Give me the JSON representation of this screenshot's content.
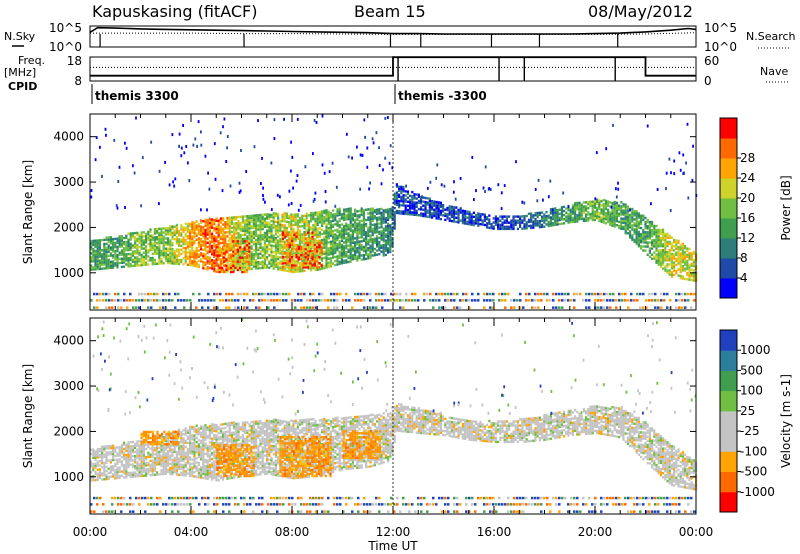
{
  "header": {
    "station": "Kapuskasing (fitACF)",
    "beam": "Beam 15",
    "date": "08/May/2012"
  },
  "side_labels": {
    "nsky_label": "N.Sky",
    "freq_label": "Freq.",
    "freq_unit": "[MHz]",
    "cpid_label": "CPID",
    "nsearch_label": "N.Search",
    "nave_label": "Nave"
  },
  "cpid_segments": [
    {
      "label": "themis 3300",
      "start_h": 0,
      "end_h": 12
    },
    {
      "label": "themis -3300",
      "start_h": 12,
      "end_h": 24
    }
  ],
  "colors": {
    "power": [
      "#0000ff",
      "#1e4aa8",
      "#2d7d7d",
      "#3f9f4f",
      "#6fc040",
      "#cfd22a",
      "#ffa400",
      "#ff6a00",
      "#ff0000"
    ],
    "velocity": [
      "#2040c0",
      "#2d7d9d",
      "#3f9f4f",
      "#6fc040",
      "#c4c4c4",
      "#c4c4c4",
      "#ffa400",
      "#ff6a00",
      "#ff0000"
    ]
  },
  "chart_data": [
    {
      "type": "line",
      "panel": "nsky-nsearch",
      "yaxis_left": {
        "ticks": [
          "10^5",
          "10^0"
        ]
      },
      "yaxis_right": {
        "ticks": [
          "10^5",
          "10^0"
        ]
      },
      "xlim": [
        0,
        24
      ],
      "series": [
        {
          "name": "N.Sky",
          "style": "solid",
          "x": [
            0,
            0.3,
            1,
            2,
            3,
            4,
            5,
            6,
            7,
            8,
            9,
            10,
            11,
            12,
            13,
            14,
            15,
            16,
            17,
            18,
            19,
            20,
            21,
            22,
            23,
            23.7,
            24
          ],
          "y": [
            3.5,
            4.6,
            4.5,
            4.3,
            4.2,
            4.1,
            4.0,
            3.9,
            3.8,
            3.7,
            3.6,
            3.5,
            3.4,
            3.2,
            3.2,
            3.1,
            3.1,
            3.1,
            3.1,
            3.1,
            3.1,
            3.2,
            3.3,
            3.6,
            4.0,
            4.4,
            4.2
          ]
        },
        {
          "name": "N.Search",
          "style": "dotted",
          "x": [
            0,
            2,
            4,
            6,
            8,
            10,
            12,
            14,
            16,
            18,
            20,
            22,
            24
          ],
          "y": [
            3.3,
            3.3,
            3.3,
            3.2,
            3.2,
            3.1,
            3.0,
            3.0,
            3.0,
            3.0,
            3.0,
            3.1,
            3.4
          ]
        }
      ]
    },
    {
      "type": "line",
      "panel": "freq-nave",
      "yaxis_left": {
        "ticks": [
          "18",
          "8"
        ],
        "range": [
          8,
          18
        ]
      },
      "yaxis_right": {
        "ticks": [
          "60",
          "0"
        ],
        "range": [
          0,
          60
        ]
      },
      "xlim": [
        0,
        24
      ],
      "series": [
        {
          "name": "Freq.",
          "style": "solid",
          "x": [
            0,
            12,
            12,
            22,
            22,
            24
          ],
          "y": [
            10.2,
            10.2,
            17.9,
            17.9,
            10.2,
            10.2
          ]
        },
        {
          "name": "Nave",
          "style": "dotted",
          "x": [
            0,
            24
          ],
          "y": [
            34,
            34
          ]
        }
      ]
    },
    {
      "type": "heatmap",
      "panel": "power",
      "xlabel": "",
      "ylabel": "Slant Range [km]",
      "yticks": [
        1000,
        2000,
        3000,
        4000
      ],
      "ylim": [
        180,
        4500
      ],
      "xlim": [
        0,
        24
      ],
      "colorbar": {
        "label": "Power [dB]",
        "ticks": [
          4,
          8,
          12,
          16,
          20,
          24,
          28
        ],
        "range": [
          0,
          30
        ]
      },
      "echo_band": {
        "x": [
          0,
          1,
          2,
          3,
          4,
          5,
          6,
          7,
          8,
          9,
          10,
          11,
          11.9,
          12.1,
          13,
          14,
          15,
          16,
          17,
          18,
          19,
          20,
          21,
          22,
          23,
          24
        ],
        "bottom": [
          1050,
          1100,
          1150,
          1200,
          1150,
          1000,
          1050,
          1100,
          1000,
          1050,
          1200,
          1300,
          1400,
          2300,
          2250,
          2150,
          2050,
          1950,
          1950,
          2000,
          2100,
          2150,
          1950,
          1400,
          900,
          800
        ],
        "top": [
          1700,
          1800,
          1900,
          2000,
          2100,
          2200,
          2250,
          2300,
          2300,
          2350,
          2400,
          2400,
          2400,
          2950,
          2700,
          2500,
          2350,
          2250,
          2250,
          2350,
          2500,
          2600,
          2550,
          2200,
          1800,
          1400
        ],
        "level": [
          3,
          3,
          4,
          4,
          6,
          7,
          4,
          4,
          5,
          4,
          3,
          3,
          2,
          1,
          1,
          1,
          1,
          1,
          1,
          2,
          3,
          4,
          3,
          3,
          5,
          5
        ]
      }
    },
    {
      "type": "heatmap",
      "panel": "velocity",
      "xlabel": "Time UT",
      "ylabel": "Slant Range [km]",
      "yticks": [
        1000,
        2000,
        3000,
        4000
      ],
      "ylim": [
        180,
        4500
      ],
      "xlim": [
        0,
        24
      ],
      "xticks": [
        "00:00",
        "04:00",
        "08:00",
        "12:00",
        "16:00",
        "20:00",
        "00:00"
      ],
      "colorbar": {
        "label": "Velocity [m s-1]",
        "ticks": [
          1000,
          500,
          100,
          25,
          -25,
          -100,
          -500,
          -1000
        ],
        "range": [
          -1000,
          1000
        ]
      },
      "echo_band": {
        "x": [
          0,
          1,
          2,
          3,
          4,
          5,
          6,
          7,
          8,
          9,
          10,
          11,
          11.9,
          12.1,
          13,
          14,
          15,
          16,
          17,
          18,
          19,
          20,
          21,
          22,
          23,
          24
        ],
        "bottom": [
          900,
          950,
          1000,
          1050,
          1000,
          900,
          1000,
          1050,
          950,
          1000,
          1150,
          1200,
          1350,
          2000,
          1950,
          1900,
          1800,
          1750,
          1750,
          1800,
          1900,
          1950,
          1850,
          1300,
          800,
          700
        ],
        "top": [
          1600,
          1700,
          1800,
          1950,
          2100,
          2150,
          2200,
          2250,
          2250,
          2250,
          2300,
          2350,
          2400,
          2600,
          2500,
          2350,
          2250,
          2200,
          2250,
          2350,
          2450,
          2550,
          2500,
          2200,
          1700,
          1300
        ]
      },
      "orange_patches": [
        {
          "x0": 5,
          "x1": 6.5,
          "y0": 1000,
          "y1": 1700
        },
        {
          "x0": 7.5,
          "x1": 9.5,
          "y0": 1000,
          "y1": 1900
        },
        {
          "x0": 10,
          "x1": 11.5,
          "y0": 1400,
          "y1": 2000
        },
        {
          "x0": 2,
          "x1": 3.5,
          "y0": 1700,
          "y1": 2000
        }
      ]
    }
  ]
}
